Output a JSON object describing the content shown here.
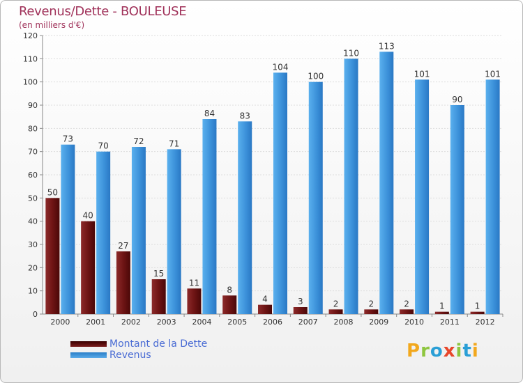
{
  "chart_data": {
    "type": "bar",
    "title": "Revenus/Dette - BOULEUSE",
    "subtitle": "(en milliers d'€)",
    "categories": [
      "2000",
      "2001",
      "2002",
      "2003",
      "2004",
      "2005",
      "2006",
      "2007",
      "2008",
      "2009",
      "2010",
      "2011",
      "2012"
    ],
    "series": [
      {
        "name": "Montant de la Dette",
        "values": [
          50,
          40,
          27,
          15,
          11,
          8,
          4,
          3,
          2,
          2,
          2,
          1,
          1
        ],
        "color": "#7a1c1c"
      },
      {
        "name": "Revenus",
        "values": [
          73,
          70,
          72,
          71,
          84,
          83,
          104,
          100,
          110,
          113,
          101,
          90,
          101
        ],
        "color": "#4a9fe0"
      }
    ],
    "ylim": [
      0,
      120
    ],
    "yticks": [
      0,
      10,
      20,
      30,
      40,
      50,
      60,
      70,
      80,
      90,
      100,
      110,
      120
    ],
    "grid": true,
    "legend_position": "bottom-left"
  },
  "logo": {
    "letters": [
      "P",
      "r",
      "o",
      "x",
      "i",
      "t",
      "i"
    ],
    "colors": [
      "#f2a81d",
      "#8ec63f",
      "#2a9fd6",
      "#e8462a",
      "#8ec63f",
      "#2a9fd6",
      "#f2a81d"
    ]
  }
}
